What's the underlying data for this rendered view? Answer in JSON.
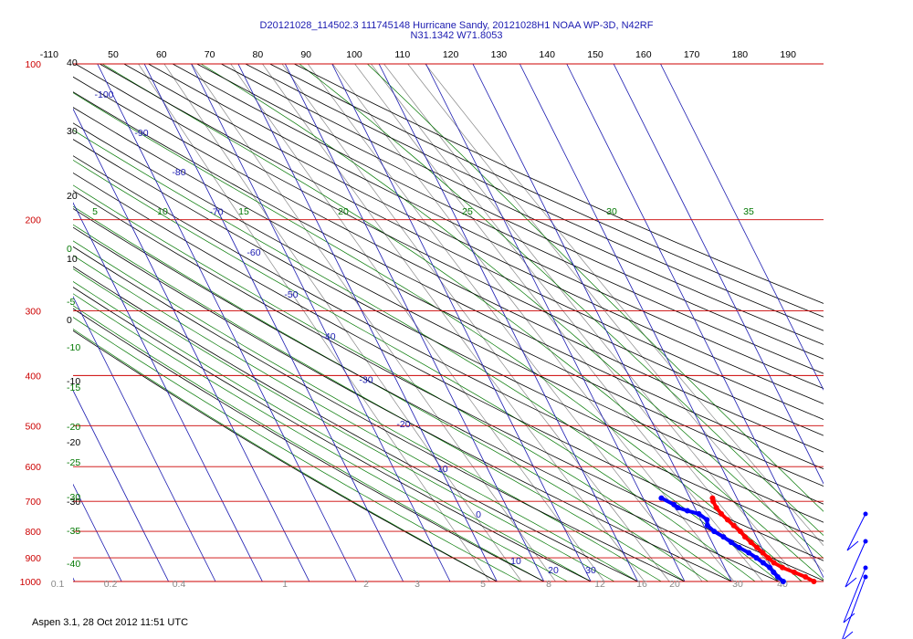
{
  "header": {
    "title_line1": "D20121028_114502.3 111745148 Hurricane Sandy, 20121028H1 NOAA WP-3D, N42RF",
    "title_line2": "N31.1342 W71.8053"
  },
  "footer": {
    "text": "Aspen 3.1, 28 Oct 2012  11:51 UTC"
  },
  "colors": {
    "isobar": "#cc0000",
    "isotherm": "#1a1ab0",
    "dry_adiabat": "#000000",
    "moist_adiabat": "#007700",
    "mixing_ratio": "#888888",
    "temperature": "#ff0000",
    "dewpoint": "#0000ff"
  },
  "chart_data": {
    "type": "line",
    "chart_kind": "skew-T log-P diagram",
    "pressure_levels": [
      100,
      200,
      300,
      400,
      500,
      600,
      700,
      800,
      900,
      1000
    ],
    "pressure_labels": [
      "100",
      "200",
      "300",
      "400",
      "500",
      "600",
      "700",
      "800",
      "900",
      "1000"
    ],
    "theta_top_labels": [
      "-110",
      "50",
      "60",
      "70",
      "80",
      "90",
      "100",
      "110",
      "120",
      "130",
      "140",
      "150",
      "160",
      "170",
      "180",
      "190"
    ],
    "isotherm_labels": [
      {
        "t": -100,
        "label": "-100"
      },
      {
        "t": -90,
        "label": "-90"
      },
      {
        "t": -80,
        "label": "-80"
      },
      {
        "t": -70,
        "label": "-70"
      },
      {
        "t": -60,
        "label": "-60"
      },
      {
        "t": -50,
        "label": "-50"
      },
      {
        "t": -40,
        "label": "-40"
      },
      {
        "t": -30,
        "label": "-30"
      },
      {
        "t": -20,
        "label": "-20"
      },
      {
        "t": -10,
        "label": "-10"
      },
      {
        "t": 0,
        "label": "0"
      },
      {
        "t": 10,
        "label": "10"
      },
      {
        "t": 20,
        "label": "20"
      },
      {
        "t": 30,
        "label": "30"
      }
    ],
    "left_black_labels": [
      "40",
      "30",
      "20",
      "10",
      "0",
      "-10",
      "-20",
      "-30"
    ],
    "left_green_labels": [
      "0",
      "-5",
      "-10",
      "-15",
      "-20",
      "-25",
      "-30",
      "-35",
      "-40"
    ],
    "moist_top_labels": [
      "5",
      "10",
      "15",
      "20",
      "25",
      "30",
      "35"
    ],
    "bottom_labels": [
      "0.1",
      "0.2",
      "0.4",
      "1",
      "2",
      "3",
      "5",
      "8",
      "12",
      "16",
      "20",
      "30",
      "40"
    ],
    "series": [
      {
        "name": "Temperature",
        "pressure": [
          690,
          700,
          720,
          740,
          760,
          780,
          800,
          820,
          840,
          860,
          880,
          900,
          920,
          940,
          960,
          980,
          1000
        ],
        "temperature": [
          14.8,
          14.6,
          14.6,
          15.0,
          15.7,
          16.4,
          17.2,
          17.6,
          18.3,
          19.0,
          19.7,
          20.3,
          21.0,
          22.3,
          24.3,
          26.2,
          27.5
        ]
      },
      {
        "name": "Dewpoint",
        "pressure": [
          690,
          710,
          720,
          730,
          740,
          760,
          780,
          800,
          820,
          840,
          860,
          880,
          900,
          920,
          940,
          960,
          980,
          1000
        ],
        "dewpoint": [
          3.9,
          5.9,
          6.4,
          8.1,
          10.2,
          11.3,
          10.8,
          11.6,
          13.0,
          14.1,
          15.2,
          16.7,
          17.8,
          18.7,
          19.6,
          19.9,
          20.3,
          21.0
        ]
      }
    ]
  }
}
